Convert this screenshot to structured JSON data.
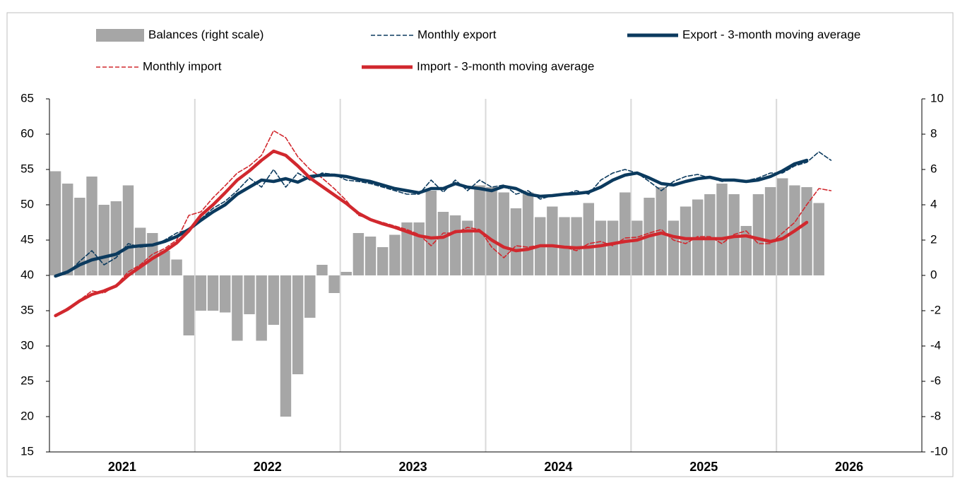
{
  "chart_data": {
    "type": "combo",
    "x_labels": [
      "2021",
      "2022",
      "2023",
      "2024",
      "2025",
      "2026"
    ],
    "categories": [
      null,
      null,
      null,
      null,
      null,
      null,
      null,
      null,
      null,
      null,
      null,
      null,
      null,
      null,
      null,
      null,
      null,
      null,
      null,
      null,
      null,
      null,
      null,
      null,
      null,
      null,
      null,
      null,
      null,
      null,
      null,
      null,
      null,
      null,
      null,
      null,
      null,
      null,
      null,
      null,
      null,
      null,
      null,
      null,
      null,
      null,
      null,
      null,
      null,
      null,
      null,
      null,
      null,
      null,
      null,
      null,
      null,
      null,
      null,
      null,
      null,
      null,
      null,
      null,
      null
    ],
    "ylim": [
      15,
      65
    ],
    "yticks": [
      15,
      20,
      25,
      30,
      35,
      40,
      45,
      50,
      55,
      60,
      65
    ],
    "y2lim": [
      -10,
      10
    ],
    "y2ticks": [
      -10,
      -8,
      -6,
      -4,
      -2,
      0,
      2,
      4,
      6,
      8,
      10
    ],
    "series": [
      {
        "name": "Balances (right scale)",
        "type": "bar",
        "axis": "y2",
        "color": "#a6a6a6",
        "values": [
          5.9,
          5.2,
          4.4,
          5.6,
          4.0,
          4.2,
          5.1,
          2.7,
          2.4,
          1.4,
          0.9,
          -3.4,
          -2.0,
          -2.0,
          -2.1,
          -3.7,
          -2.2,
          -3.7,
          -2.8,
          -8.0,
          -5.6,
          -2.4,
          0.6,
          -1.0,
          0.2,
          2.4,
          2.2,
          1.6,
          2.3,
          3.0,
          3.0,
          4.8,
          3.6,
          3.4,
          3.1,
          5.1,
          5.0,
          4.7,
          3.8,
          4.7,
          3.3,
          3.9,
          3.3,
          3.3,
          4.1,
          3.1,
          3.1,
          4.7,
          3.1,
          4.4,
          5.0,
          3.1,
          3.9,
          4.3,
          4.6,
          5.2,
          4.6,
          2.8,
          4.6,
          5.0,
          5.5,
          5.1,
          5.0,
          4.1,
          null
        ]
      },
      {
        "name": "Monthly export",
        "type": "dashed",
        "color": "#0b3a5e",
        "values": [
          39.8,
          40.3,
          42.0,
          43.5,
          41.5,
          42.5,
          44.5,
          44.0,
          44.2,
          45.0,
          46.0,
          46.5,
          48.0,
          49.5,
          50.5,
          52.0,
          53.8,
          52.5,
          55.0,
          52.5,
          54.5,
          53.5,
          54.5,
          54.3,
          53.5,
          53.3,
          53.0,
          52.5,
          52.0,
          51.5,
          51.5,
          53.5,
          51.8,
          53.5,
          52.0,
          53.5,
          52.5,
          52.8,
          51.5,
          52.0,
          50.8,
          51.3,
          51.5,
          52.0,
          51.5,
          53.5,
          54.5,
          55.0,
          54.5,
          53.3,
          52.0,
          53.3,
          54.0,
          54.3,
          53.8,
          53.3,
          53.5,
          53.4,
          53.8,
          54.5,
          54.5,
          55.5,
          56.0,
          57.5,
          56.3
        ]
      },
      {
        "name": "Export - 3-month moving average",
        "type": "thick",
        "color": "#0b3a5e",
        "values": [
          39.9,
          40.5,
          41.5,
          42.2,
          42.6,
          43.0,
          44.0,
          44.2,
          44.3,
          44.8,
          45.5,
          46.5,
          47.8,
          49.0,
          50.0,
          51.5,
          52.5,
          53.5,
          53.3,
          53.7,
          53.2,
          54.0,
          54.2,
          54.2,
          54.0,
          53.6,
          53.3,
          52.8,
          52.3,
          52.0,
          51.7,
          52.3,
          52.3,
          53.0,
          52.5,
          52.3,
          52.0,
          52.6,
          52.3,
          51.5,
          51.2,
          51.3,
          51.5,
          51.6,
          51.8,
          52.5,
          53.5,
          54.2,
          54.5,
          53.8,
          53.0,
          52.8,
          53.3,
          53.7,
          53.9,
          53.5,
          53.5,
          53.3,
          53.5,
          54.0,
          54.8,
          55.8,
          56.3,
          null,
          null
        ]
      },
      {
        "name": "Monthly import",
        "type": "dashed",
        "color": "#d1282e",
        "values": [
          34.3,
          35.4,
          36.5,
          37.8,
          37.5,
          38.6,
          40.5,
          41.5,
          43.0,
          43.8,
          45.0,
          48.5,
          49.0,
          51.0,
          52.7,
          54.5,
          55.5,
          57.0,
          60.5,
          59.5,
          56.8,
          55.0,
          53.8,
          52.3,
          50.6,
          48.5,
          48.0,
          47.5,
          47.0,
          46.5,
          45.8,
          44.2,
          46.0,
          46.0,
          46.8,
          46.5,
          44.0,
          42.5,
          44.2,
          44.0,
          44.3,
          44.2,
          44.0,
          43.5,
          44.5,
          44.8,
          44.2,
          45.3,
          45.4,
          46.0,
          46.5,
          45.0,
          44.5,
          45.5,
          45.5,
          44.5,
          45.8,
          46.3,
          44.5,
          44.5,
          46.0,
          47.5,
          50.0,
          52.3,
          52.0
        ]
      },
      {
        "name": "Import - 3-month moving average",
        "type": "thick",
        "color": "#d1282e",
        "values": [
          34.3,
          35.2,
          36.4,
          37.3,
          37.8,
          38.5,
          40.0,
          41.2,
          42.4,
          43.4,
          44.6,
          46.3,
          48.5,
          50.0,
          51.7,
          53.5,
          54.8,
          56.3,
          57.6,
          57.0,
          55.5,
          53.8,
          52.6,
          51.4,
          50.2,
          48.8,
          47.9,
          47.3,
          46.8,
          46.2,
          45.6,
          45.3,
          45.4,
          46.2,
          46.3,
          46.3,
          45.0,
          44.0,
          43.5,
          43.7,
          44.2,
          44.2,
          44.0,
          43.9,
          44.0,
          44.2,
          44.5,
          44.8,
          45.0,
          45.6,
          46.0,
          45.5,
          45.2,
          45.2,
          45.2,
          45.2,
          45.5,
          45.6,
          45.2,
          44.8,
          45.2,
          46.3,
          47.5,
          null,
          null
        ]
      }
    ]
  }
}
